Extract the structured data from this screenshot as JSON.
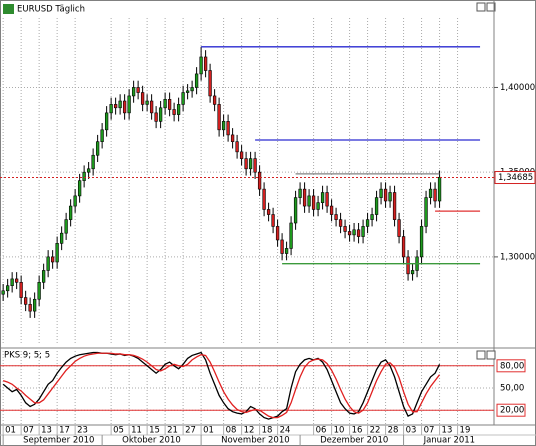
{
  "chart_data": [
    {
      "type": "candlestick",
      "title": "EURUSD Täglich",
      "open": [
        1.278,
        1.28,
        1.283,
        1.287,
        1.285,
        1.276,
        1.272,
        1.268,
        1.275,
        1.285,
        1.292,
        1.3,
        1.297,
        1.308,
        1.314,
        1.322,
        1.33,
        1.336,
        1.345,
        1.35,
        1.352,
        1.36,
        1.368,
        1.375,
        1.385,
        1.39,
        1.388,
        1.392,
        1.385,
        1.395,
        1.4,
        1.397,
        1.39,
        1.392,
        1.385,
        1.38,
        1.388,
        1.393,
        1.387,
        1.384,
        1.39,
        1.397,
        1.398,
        1.4,
        1.408,
        1.418,
        1.41,
        1.395,
        1.39,
        1.375,
        1.38,
        1.372,
        1.368,
        1.362,
        1.358,
        1.352,
        1.358,
        1.35,
        1.34,
        1.328,
        1.325,
        1.318,
        1.31,
        1.302,
        1.305,
        1.32,
        1.335,
        1.34,
        1.33,
        1.336,
        1.328,
        1.332,
        1.338,
        1.33,
        1.325,
        1.322,
        1.318,
        1.315,
        1.313,
        1.316,
        1.312,
        1.318,
        1.322,
        1.325,
        1.335,
        1.34,
        1.333,
        1.338,
        1.322,
        1.312,
        1.3,
        1.29,
        1.292,
        1.3,
        1.318,
        1.335,
        1.34,
        1.333
      ],
      "high": [
        1.284,
        1.287,
        1.291,
        1.291,
        1.289,
        1.28,
        1.276,
        1.279,
        1.289,
        1.296,
        1.304,
        1.304,
        1.312,
        1.318,
        1.326,
        1.334,
        1.34,
        1.349,
        1.354,
        1.356,
        1.364,
        1.372,
        1.379,
        1.389,
        1.394,
        1.394,
        1.396,
        1.396,
        1.399,
        1.404,
        1.404,
        1.401,
        1.396,
        1.396,
        1.389,
        1.392,
        1.397,
        1.397,
        1.391,
        1.394,
        1.401,
        1.402,
        1.404,
        1.412,
        1.424,
        1.422,
        1.414,
        1.399,
        1.394,
        1.384,
        1.384,
        1.376,
        1.372,
        1.366,
        1.362,
        1.362,
        1.362,
        1.354,
        1.344,
        1.332,
        1.329,
        1.322,
        1.314,
        1.309,
        1.324,
        1.339,
        1.344,
        1.344,
        1.34,
        1.34,
        1.336,
        1.342,
        1.342,
        1.334,
        1.329,
        1.326,
        1.322,
        1.319,
        1.32,
        1.32,
        1.322,
        1.326,
        1.329,
        1.339,
        1.344,
        1.344,
        1.342,
        1.342,
        1.326,
        1.316,
        1.304,
        1.296,
        1.304,
        1.322,
        1.339,
        1.344,
        1.344,
        1.351
      ],
      "low": [
        1.274,
        1.276,
        1.279,
        1.281,
        1.272,
        1.268,
        1.264,
        1.264,
        1.271,
        1.281,
        1.288,
        1.293,
        1.293,
        1.304,
        1.31,
        1.318,
        1.326,
        1.332,
        1.341,
        1.346,
        1.348,
        1.356,
        1.364,
        1.371,
        1.381,
        1.384,
        1.384,
        1.381,
        1.381,
        1.391,
        1.393,
        1.386,
        1.386,
        1.381,
        1.376,
        1.376,
        1.384,
        1.383,
        1.38,
        1.38,
        1.386,
        1.393,
        1.394,
        1.396,
        1.404,
        1.406,
        1.391,
        1.386,
        1.371,
        1.371,
        1.368,
        1.364,
        1.358,
        1.354,
        1.348,
        1.348,
        1.346,
        1.336,
        1.324,
        1.321,
        1.314,
        1.306,
        1.298,
        1.298,
        1.301,
        1.316,
        1.331,
        1.326,
        1.326,
        1.324,
        1.324,
        1.328,
        1.326,
        1.321,
        1.318,
        1.314,
        1.311,
        1.309,
        1.309,
        1.308,
        1.308,
        1.314,
        1.318,
        1.321,
        1.331,
        1.329,
        1.329,
        1.318,
        1.308,
        1.296,
        1.286,
        1.286,
        1.288,
        1.296,
        1.314,
        1.331,
        1.329,
        1.329
      ],
      "close": [
        1.28,
        1.283,
        1.287,
        1.285,
        1.276,
        1.272,
        1.268,
        1.275,
        1.285,
        1.292,
        1.3,
        1.297,
        1.308,
        1.314,
        1.322,
        1.33,
        1.336,
        1.345,
        1.35,
        1.352,
        1.36,
        1.368,
        1.375,
        1.385,
        1.39,
        1.388,
        1.392,
        1.385,
        1.395,
        1.4,
        1.397,
        1.39,
        1.392,
        1.385,
        1.38,
        1.388,
        1.393,
        1.387,
        1.384,
        1.39,
        1.397,
        1.398,
        1.4,
        1.408,
        1.418,
        1.41,
        1.395,
        1.39,
        1.375,
        1.38,
        1.372,
        1.368,
        1.362,
        1.358,
        1.352,
        1.358,
        1.35,
        1.34,
        1.328,
        1.325,
        1.318,
        1.31,
        1.302,
        1.305,
        1.32,
        1.335,
        1.34,
        1.33,
        1.336,
        1.328,
        1.332,
        1.338,
        1.33,
        1.325,
        1.322,
        1.318,
        1.315,
        1.313,
        1.316,
        1.312,
        1.318,
        1.322,
        1.325,
        1.335,
        1.34,
        1.333,
        1.338,
        1.322,
        1.312,
        1.3,
        1.29,
        1.292,
        1.3,
        1.318,
        1.335,
        1.34,
        1.333,
        1.347
      ],
      "up_color": "#1e9a1e",
      "down_color": "#d42020",
      "xlim": [
        -0.7,
        109.1
      ],
      "ylim": [
        1.248,
        1.441
      ],
      "yticks": [
        {
          "value": 1.3,
          "label": "1,30000"
        },
        {
          "value": 1.35,
          "label": "1,35000"
        },
        {
          "value": 1.4,
          "label": "1,40000"
        }
      ],
      "grid": true,
      "lines": [
        {
          "value": 1.424,
          "start": 44,
          "end": 106,
          "color": "#2a2ad0"
        },
        {
          "value": 1.369,
          "start": 56,
          "end": 106,
          "color": "#2a2ad0"
        },
        {
          "value": 1.349,
          "start": 65,
          "end": 97,
          "color": "#808080"
        },
        {
          "value": 1.327,
          "start": 96,
          "end": 106,
          "color": "#e03030"
        },
        {
          "value": 1.296,
          "start": 62,
          "end": 106,
          "color": "#3c9a3c"
        }
      ],
      "last_price": {
        "value": 1.34685,
        "label": "1,34685"
      },
      "last_price_color": "#d42020"
    },
    {
      "type": "line",
      "title": "PKS 9; 5; 5",
      "series": [
        {
          "name": "%K",
          "color": "#000000",
          "values": [
            55,
            50,
            45,
            48,
            40,
            30,
            25,
            28,
            35,
            45,
            55,
            60,
            70,
            78,
            85,
            90,
            93,
            95,
            96,
            97,
            98,
            98,
            97,
            97,
            96,
            95,
            96,
            94,
            95,
            93,
            90,
            85,
            80,
            75,
            70,
            75,
            82,
            85,
            80,
            76,
            82,
            90,
            94,
            96,
            98,
            88,
            70,
            55,
            40,
            30,
            22,
            18,
            16,
            15,
            18,
            25,
            22,
            15,
            10,
            8,
            10,
            12,
            18,
            22,
            50,
            72,
            82,
            88,
            90,
            88,
            90,
            85,
            75,
            60,
            45,
            30,
            22,
            16,
            15,
            18,
            30,
            45,
            60,
            75,
            85,
            88,
            80,
            65,
            45,
            25,
            12,
            15,
            30,
            45,
            55,
            65,
            70,
            82
          ]
        },
        {
          "name": "%D",
          "color": "#e02020",
          "values": [
            60,
            58,
            55,
            50,
            46,
            40,
            35,
            30,
            30,
            34,
            42,
            50,
            58,
            66,
            74,
            80,
            86,
            90,
            93,
            95,
            96,
            97,
            97,
            97,
            97,
            96,
            96,
            95,
            95,
            94,
            92,
            89,
            85,
            80,
            75,
            73,
            76,
            80,
            82,
            80,
            79,
            82,
            88,
            92,
            95,
            94,
            85,
            72,
            58,
            45,
            35,
            27,
            21,
            18,
            17,
            19,
            21,
            20,
            16,
            12,
            10,
            10,
            13,
            17,
            30,
            48,
            65,
            78,
            85,
            88,
            89,
            88,
            83,
            74,
            62,
            48,
            35,
            25,
            18,
            16,
            20,
            30,
            45,
            60,
            72,
            82,
            84,
            78,
            64,
            45,
            28,
            18,
            18,
            30,
            42,
            52,
            60,
            68
          ]
        }
      ],
      "ylim": [
        0,
        100
      ],
      "yticks": [
        {
          "value": 20,
          "label": "20,00"
        },
        {
          "value": 50,
          "label": "50,00"
        },
        {
          "value": 80,
          "label": "80,00"
        }
      ],
      "hlines": [
        80,
        20
      ],
      "hline_color": "#e03030",
      "xticks": [
        {
          "value": 0,
          "label": "01"
        },
        {
          "value": 4,
          "label": "07"
        },
        {
          "value": 8,
          "label": "13"
        },
        {
          "value": 12,
          "label": "17"
        },
        {
          "value": 16,
          "label": "23"
        },
        {
          "value": 24,
          "label": "05"
        },
        {
          "value": 28,
          "label": "11"
        },
        {
          "value": 32,
          "label": "15"
        },
        {
          "value": 36,
          "label": "21"
        },
        {
          "value": 40,
          "label": "27"
        },
        {
          "value": 44,
          "label": "01"
        },
        {
          "value": 49,
          "label": "08"
        },
        {
          "value": 53,
          "label": "12"
        },
        {
          "value": 57,
          "label": "18"
        },
        {
          "value": 61,
          "label": "24"
        },
        {
          "value": 69,
          "label": "06"
        },
        {
          "value": 73,
          "label": "10"
        },
        {
          "value": 77,
          "label": "16"
        },
        {
          "value": 81,
          "label": "22"
        },
        {
          "value": 85,
          "label": "28"
        },
        {
          "value": 89,
          "label": "03"
        },
        {
          "value": 93,
          "label": "07"
        },
        {
          "value": 97,
          "label": "13"
        },
        {
          "value": 101,
          "label": "19"
        }
      ],
      "months": [
        {
          "value": 0,
          "label": "September 2010"
        },
        {
          "value": 22,
          "label": "Oktober 2010"
        },
        {
          "value": 44,
          "label": "November 2010"
        },
        {
          "value": 66,
          "label": "Dezember 2010"
        },
        {
          "value": 89,
          "label": "Januar 2011"
        }
      ]
    }
  ]
}
